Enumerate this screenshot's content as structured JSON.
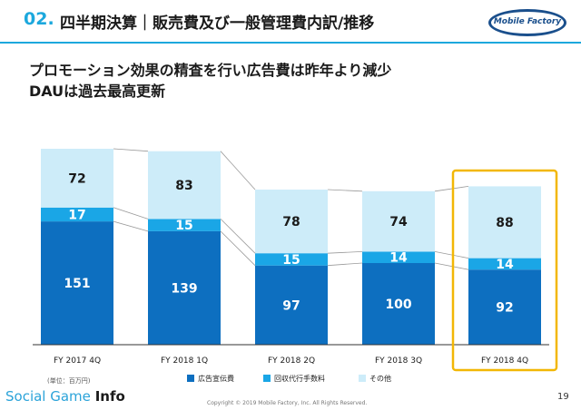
{
  "header": {
    "number": "02.",
    "title": "四半期決算｜販売費及び一般管理費内訳/推移",
    "logo_text": "Mobile Factory"
  },
  "headline": {
    "line1": "プロモーション効果の精査を行い広告費は昨年より減少",
    "line2": "DAUは過去最高更新"
  },
  "chart_data": {
    "type": "bar",
    "stacked": true,
    "categories": [
      "FY 2017 4Q",
      "FY 2018 1Q",
      "FY 2018 2Q",
      "FY 2018 3Q",
      "FY 2018 4Q"
    ],
    "series": [
      {
        "name": "広告宣伝費",
        "values": [
          151,
          139,
          97,
          100,
          92
        ],
        "color": "#0d6fc0"
      },
      {
        "name": "回収代行手数料",
        "values": [
          17,
          15,
          15,
          14,
          14
        ],
        "color": "#1aa6e6"
      },
      {
        "name": "その他",
        "values": [
          72,
          83,
          78,
          74,
          88
        ],
        "color": "#cdecf9"
      }
    ],
    "highlighted_category": "FY 2018 4Q",
    "highlight_color": "#f2b705",
    "unit_label": "(単位：百万円)",
    "ylim": [
      0,
      240
    ],
    "grid": false,
    "legend_position": "bottom-right"
  },
  "footer": {
    "brand_main": "Social Game",
    "brand_bold": "Info",
    "copyright": "Copyright © 2019 Mobile Factory, Inc. All Rights Reserved.",
    "page_number": "19"
  }
}
